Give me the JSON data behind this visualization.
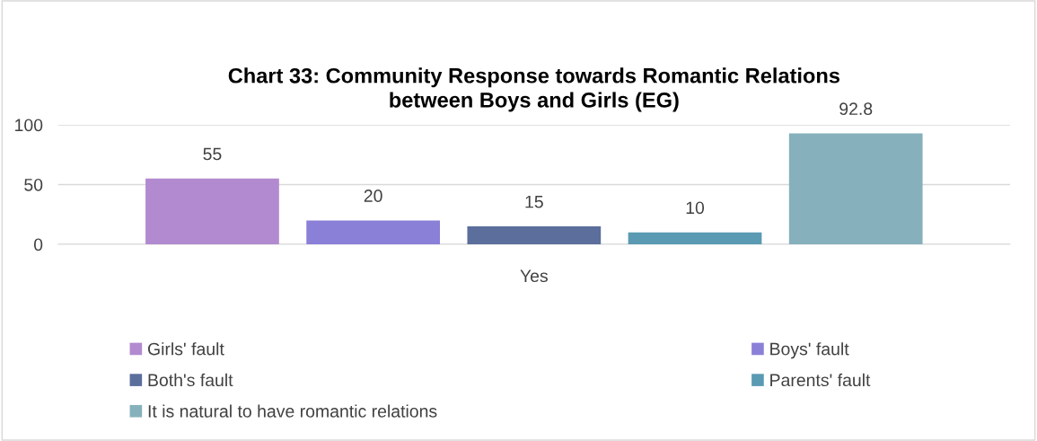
{
  "chart_data": {
    "type": "bar",
    "title": "Chart 33: Community Response towards Romantic Relations\nbetween Boys and Girls (EG)",
    "categories": [
      "Yes"
    ],
    "series": [
      {
        "name": "Girls' fault",
        "color": "#b28ad0",
        "values": [
          55
        ]
      },
      {
        "name": "Boys' fault",
        "color": "#8a80d8",
        "values": [
          20
        ]
      },
      {
        "name": "Both's fault",
        "color": "#5b6e9c",
        "values": [
          15
        ]
      },
      {
        "name": "Parents' fault",
        "color": "#5a9ab3",
        "values": [
          10
        ]
      },
      {
        "name": "It is natural to have romantic relations",
        "color": "#86b0bc",
        "values": [
          92.8
        ]
      }
    ],
    "ylim": [
      0,
      100
    ],
    "yticks": [
      0,
      50,
      100
    ],
    "grid": "y",
    "legend": "bottom",
    "data_labels": true
  }
}
